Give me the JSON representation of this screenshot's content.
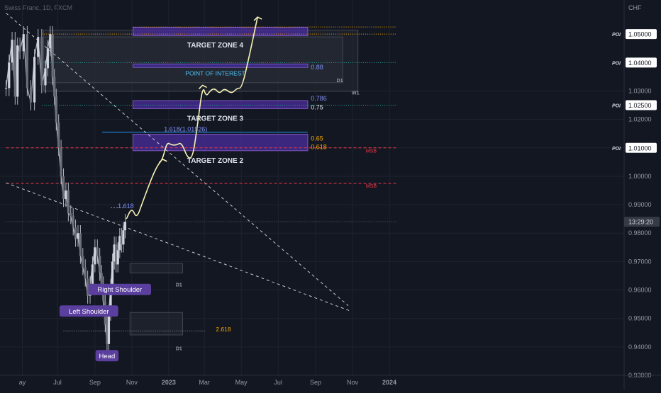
{
  "header": {
    "symbol": "Swiss Franc, 1D, FXCM"
  },
  "chart_data": {
    "type": "line",
    "title": "",
    "currency": "CHF",
    "y_axis": {
      "min": 0.93,
      "max": 1.062,
      "ticks": [
        "0.93000",
        "0.94000",
        "0.95000",
        "0.96000",
        "0.97000",
        "0.98000",
        "0.99000",
        "1.00000",
        "1.01000",
        "1.02000",
        "1.03000"
      ],
      "highlighted_labels": [
        "1.05000",
        "1.04000",
        "1.02500",
        "1.01000"
      ],
      "current_label": "13:29:20"
    },
    "x_axis": {
      "ticks": [
        {
          "label": "ay",
          "day": -58
        },
        {
          "label": "Jul",
          "day": 0
        },
        {
          "label": "Sep",
          "day": 62
        },
        {
          "label": "Nov",
          "day": 123
        },
        {
          "label": "2023",
          "day": 184
        },
        {
          "label": "Mar",
          "day": 243
        },
        {
          "label": "May",
          "day": 304
        },
        {
          "label": "Jul",
          "day": 365
        },
        {
          "label": "Sep",
          "day": 427
        },
        {
          "label": "Nov",
          "day": 488
        },
        {
          "label": "2024",
          "day": 549
        }
      ]
    },
    "price_series": [
      {
        "day": -85,
        "v": 1.031
      },
      {
        "day": -80,
        "v": 1.04
      },
      {
        "day": -75,
        "v": 1.048
      },
      {
        "day": -70,
        "v": 1.028
      },
      {
        "day": -66,
        "v": 1.046
      },
      {
        "day": -62,
        "v": 1.044
      },
      {
        "day": -56,
        "v": 1.05
      },
      {
        "day": -50,
        "v": 1.031
      },
      {
        "day": -44,
        "v": 1.026
      },
      {
        "day": -38,
        "v": 1.042
      },
      {
        "day": -32,
        "v": 1.049
      },
      {
        "day": -26,
        "v": 1.032
      },
      {
        "day": -20,
        "v": 1.038
      },
      {
        "day": -16,
        "v": 1.045
      },
      {
        "day": -12,
        "v": 1.05
      },
      {
        "day": -8,
        "v": 1.035
      },
      {
        "day": -5,
        "v": 1.028
      },
      {
        "day": -2,
        "v": 1.019
      },
      {
        "day": 2,
        "v": 1.01
      },
      {
        "day": 6,
        "v": 1.0
      },
      {
        "day": 10,
        "v": 0.992
      },
      {
        "day": 14,
        "v": 0.995
      },
      {
        "day": 18,
        "v": 0.987
      },
      {
        "day": 22,
        "v": 0.986
      },
      {
        "day": 26,
        "v": 0.982
      },
      {
        "day": 30,
        "v": 0.978
      },
      {
        "day": 34,
        "v": 0.98
      },
      {
        "day": 38,
        "v": 0.972
      },
      {
        "day": 42,
        "v": 0.968
      },
      {
        "day": 46,
        "v": 0.964
      },
      {
        "day": 50,
        "v": 0.958
      },
      {
        "day": 54,
        "v": 0.962
      },
      {
        "day": 58,
        "v": 0.969
      },
      {
        "day": 62,
        "v": 0.975
      },
      {
        "day": 66,
        "v": 0.972
      },
      {
        "day": 70,
        "v": 0.966
      },
      {
        "day": 73,
        "v": 0.962
      },
      {
        "day": 76,
        "v": 0.956
      },
      {
        "day": 79,
        "v": 0.948
      },
      {
        "day": 82,
        "v": 0.941
      },
      {
        "day": 85,
        "v": 0.952
      },
      {
        "day": 88,
        "v": 0.961
      },
      {
        "day": 91,
        "v": 0.97
      },
      {
        "day": 94,
        "v": 0.976
      },
      {
        "day": 97,
        "v": 0.969
      },
      {
        "day": 100,
        "v": 0.974
      },
      {
        "day": 103,
        "v": 0.979
      },
      {
        "day": 106,
        "v": 0.976
      },
      {
        "day": 109,
        "v": 0.981
      },
      {
        "day": 112,
        "v": 0.984
      }
    ],
    "projection_path": [
      {
        "day": 114,
        "v": 0.985
      },
      {
        "day": 123,
        "v": 0.989
      },
      {
        "day": 131,
        "v": 0.985
      },
      {
        "day": 141,
        "v": 0.991
      },
      {
        "day": 157,
        "v": 1.0
      },
      {
        "day": 166,
        "v": 1.004
      },
      {
        "day": 174,
        "v": 1.006
      },
      {
        "day": 181,
        "v": 1.012
      },
      {
        "day": 189,
        "v": 1.011
      },
      {
        "day": 197,
        "v": 1.011
      },
      {
        "day": 205,
        "v": 1.012
      },
      {
        "day": 216,
        "v": 1.006
      },
      {
        "day": 224,
        "v": 1.007
      },
      {
        "day": 231,
        "v": 1.017
      },
      {
        "day": 240,
        "v": 1.032
      },
      {
        "day": 246,
        "v": 1.028
      },
      {
        "day": 252,
        "v": 1.03
      },
      {
        "day": 260,
        "v": 1.031
      },
      {
        "day": 268,
        "v": 1.029
      },
      {
        "day": 276,
        "v": 1.031
      },
      {
        "day": 288,
        "v": 1.029
      },
      {
        "day": 297,
        "v": 1.031
      },
      {
        "day": 305,
        "v": 1.031
      },
      {
        "day": 318,
        "v": 1.043
      },
      {
        "day": 325,
        "v": 1.05
      },
      {
        "day": 331,
        "v": 1.056
      }
    ],
    "zones": [
      {
        "name": "zone-target-4",
        "from_day": 125,
        "to_day": 414,
        "v_low": 1.0494,
        "v_high": 1.0524,
        "fill": "#4a2f9e",
        "opacity": 0.75
      },
      {
        "name": "zone-poi",
        "from_day": 125,
        "to_day": 414,
        "v_low": 1.0383,
        "v_high": 1.0395,
        "fill": "#3a2a8a",
        "opacity": 0.9
      },
      {
        "name": "zone-target-3",
        "from_day": 125,
        "to_day": 414,
        "v_low": 1.0238,
        "v_high": 1.0266,
        "fill": "#4a2f9e",
        "opacity": 0.75
      },
      {
        "name": "zone-target-2",
        "from_day": 125,
        "to_day": 414,
        "v_low": 1.009,
        "v_high": 1.0148,
        "fill": "#4a2f9e",
        "opacity": 0.75
      }
    ],
    "boxes": [
      {
        "name": "box-w1",
        "from_day": -23,
        "to_day": 497,
        "v_low": 1.0299,
        "v_high": 1.0514,
        "stroke": "#434651",
        "fill": "#2a2e39",
        "opacity": 0.45
      },
      {
        "name": "box-d1-top",
        "from_day": -23,
        "to_day": 472,
        "v_low": 1.0329,
        "v_high": 1.049,
        "stroke": "#434651",
        "fill": "#2a2e39",
        "opacity": 0.45
      },
      {
        "name": "box-d1-right-shoulder",
        "from_day": 120,
        "to_day": 207,
        "v_low": 0.966,
        "v_high": 0.9693,
        "stroke": "#434651",
        "fill": "#2a2e39",
        "opacity": 0.45
      },
      {
        "name": "box-d1-head",
        "from_day": 120,
        "to_day": 207,
        "v_low": 0.9442,
        "v_high": 0.9521,
        "stroke": "#434651",
        "fill": "#2a2e39",
        "opacity": 0.45
      }
    ],
    "horizontal_lines": [
      {
        "name": "level-1-0525",
        "v": 1.0525,
        "from_day": 125,
        "to_day": 560,
        "color": "#f7a600",
        "dash": "1,2"
      },
      {
        "name": "level-1-05",
        "v": 1.05,
        "from_day": -26,
        "to_day": 560,
        "color": "#f7a600",
        "dash": "1,2"
      },
      {
        "name": "level-1-04",
        "v": 1.04,
        "from_day": -26,
        "to_day": 560,
        "color": "#26a69a",
        "dash": "1,2"
      },
      {
        "name": "level-1-025",
        "v": 1.025,
        "from_day": -26,
        "to_day": 560,
        "color": "#26a69a",
        "dash": "1,2"
      },
      {
        "name": "level-1-01",
        "v": 1.01,
        "from_day": -85,
        "to_day": 560,
        "color": "#f23645",
        "dash": "4,3"
      },
      {
        "name": "level-0-9975",
        "v": 0.9975,
        "from_day": -85,
        "to_day": 560,
        "color": "#f23645",
        "dash": "4,3"
      },
      {
        "name": "level-current",
        "v": 0.984,
        "from_day": -85,
        "to_day": 560,
        "color": "#5d6270",
        "dash": "1,2"
      },
      {
        "name": "level-1-618-upper",
        "v": 1.0155,
        "from_day": 74,
        "to_day": 414,
        "color": "#2196f3",
        "dash": ""
      },
      {
        "name": "level-1-618-lower",
        "v": 0.9889,
        "from_day": 88,
        "to_day": 110,
        "color": "#9598a1",
        "dash": "2,2"
      },
      {
        "name": "level-2-618",
        "v": 0.9456,
        "from_day": 10,
        "to_day": 246,
        "color": "#9598a1",
        "dash": "1,2"
      }
    ],
    "trend_lines": [
      {
        "name": "trendline-upper",
        "from": {
          "day": -85,
          "v": 1.0574
        },
        "to": {
          "day": 481,
          "v": 0.9545
        }
      },
      {
        "name": "trendline-lower",
        "from": {
          "day": -85,
          "v": 0.9977
        },
        "to": {
          "day": 486,
          "v": 0.9525
        }
      }
    ],
    "text_labels": [
      {
        "name": "label-target-zone-4",
        "text": "TARGET ZONE 4",
        "day": 261,
        "v": 1.0453,
        "color": "#e0e3eb",
        "bold": true,
        "size": 10,
        "anchor": "middle"
      },
      {
        "name": "label-point-of-interest",
        "text": "POINT OF INTEREST",
        "day": 261,
        "v": 1.0355,
        "color": "#4fc3f7",
        "bold": false,
        "size": 8.5,
        "anchor": "middle"
      },
      {
        "name": "label-target-zone-3",
        "text": "TARGET ZONE 3",
        "day": 261,
        "v": 1.0195,
        "color": "#e0e3eb",
        "bold": true,
        "size": 10,
        "anchor": "middle"
      },
      {
        "name": "label-target-zone-2",
        "text": "TARGET ZONE 2",
        "day": 261,
        "v": 1.0047,
        "color": "#e0e3eb",
        "bold": true,
        "size": 10,
        "anchor": "middle"
      },
      {
        "name": "label-fib-0-88",
        "text": "0.88",
        "day": 419,
        "v": 1.0376,
        "color": "#7f8ff4",
        "bold": false,
        "size": 9,
        "anchor": "start"
      },
      {
        "name": "label-fib-0-786",
        "text": "0.786",
        "day": 419,
        "v": 1.0266,
        "color": "#7f8ff4",
        "bold": false,
        "size": 9,
        "anchor": "start"
      },
      {
        "name": "label-fib-0-75",
        "text": "0.75",
        "day": 419,
        "v": 1.0235,
        "color": "#e0e3eb",
        "bold": false,
        "size": 9,
        "anchor": "start"
      },
      {
        "name": "label-fib-0-65",
        "text": "0.65",
        "day": 419,
        "v": 1.0126,
        "color": "#f7a600",
        "bold": false,
        "size": 9,
        "anchor": "start"
      },
      {
        "name": "label-fib-0-618",
        "text": "0.618",
        "day": 419,
        "v": 1.0096,
        "color": "#f7a600",
        "bold": false,
        "size": 9,
        "anchor": "start"
      },
      {
        "name": "label-fib-1-618-upper",
        "text": "1.618(1.01526)",
        "day": 212,
        "v": 1.0158,
        "color": "#7f8ff4",
        "bold": false,
        "size": 9,
        "anchor": "middle"
      },
      {
        "name": "label-fib-1-618-lower",
        "text": "1.618",
        "day": 113,
        "v": 0.9888,
        "color": "#7f8ff4",
        "bold": false,
        "size": 9,
        "anchor": "middle"
      },
      {
        "name": "label-fib-2-618",
        "text": "2.618",
        "day": 262,
        "v": 0.9454,
        "color": "#f7a600",
        "bold": false,
        "size": 8.5,
        "anchor": "start"
      },
      {
        "name": "label-d1-top",
        "text": "D1",
        "day": 467,
        "v": 1.0331,
        "color": "#9598a1",
        "bold": true,
        "size": 7,
        "anchor": "middle"
      },
      {
        "name": "label-w1",
        "text": "W1",
        "day": 493,
        "v": 1.0287,
        "color": "#9598a1",
        "bold": true,
        "size": 7,
        "anchor": "middle"
      },
      {
        "name": "label-d1-mid",
        "text": "D1",
        "day": 201,
        "v": 0.9612,
        "color": "#9598a1",
        "bold": true,
        "size": 7,
        "anchor": "middle"
      },
      {
        "name": "label-d1-bottom",
        "text": "D1",
        "day": 201,
        "v": 0.9388,
        "color": "#9598a1",
        "bold": true,
        "size": 7,
        "anchor": "middle"
      },
      {
        "name": "label-msb-upper",
        "text": "MSB",
        "day": 519,
        "v": 1.0083,
        "color": "#f23645",
        "bold": false,
        "size": 7,
        "anchor": "middle"
      },
      {
        "name": "label-msb-lower",
        "text": "MSB",
        "day": 519,
        "v": 0.996,
        "color": "#f23645",
        "bold": false,
        "size": 7,
        "anchor": "middle"
      }
    ],
    "badges": [
      {
        "name": "badge-left-shoulder",
        "text": "Left Shoulder",
        "day": 52,
        "v": 0.9526
      },
      {
        "name": "badge-right-shoulder",
        "text": "Right Shoulder",
        "day": 103,
        "v": 0.9602
      },
      {
        "name": "badge-head",
        "text": "Head",
        "day": 82,
        "v": 0.9369
      }
    ],
    "poi_markers": [
      {
        "name": "poi-1-05",
        "text": "POI",
        "v": 1.05
      },
      {
        "name": "poi-1-04",
        "text": "POI",
        "v": 1.04
      },
      {
        "name": "poi-1-025",
        "text": "POI",
        "v": 1.025
      },
      {
        "name": "poi-1-01",
        "text": "POI",
        "v": 1.01
      }
    ],
    "colors": {
      "background": "#131722",
      "grid": "#1f2330",
      "price_up": "#b2b5be",
      "projection": "#f6f2b3",
      "badge": "#5b3f9e",
      "axis_text": "#9598a1",
      "highlight_label_bg": "#ffffff",
      "current_label_bg": "#363a45"
    }
  }
}
